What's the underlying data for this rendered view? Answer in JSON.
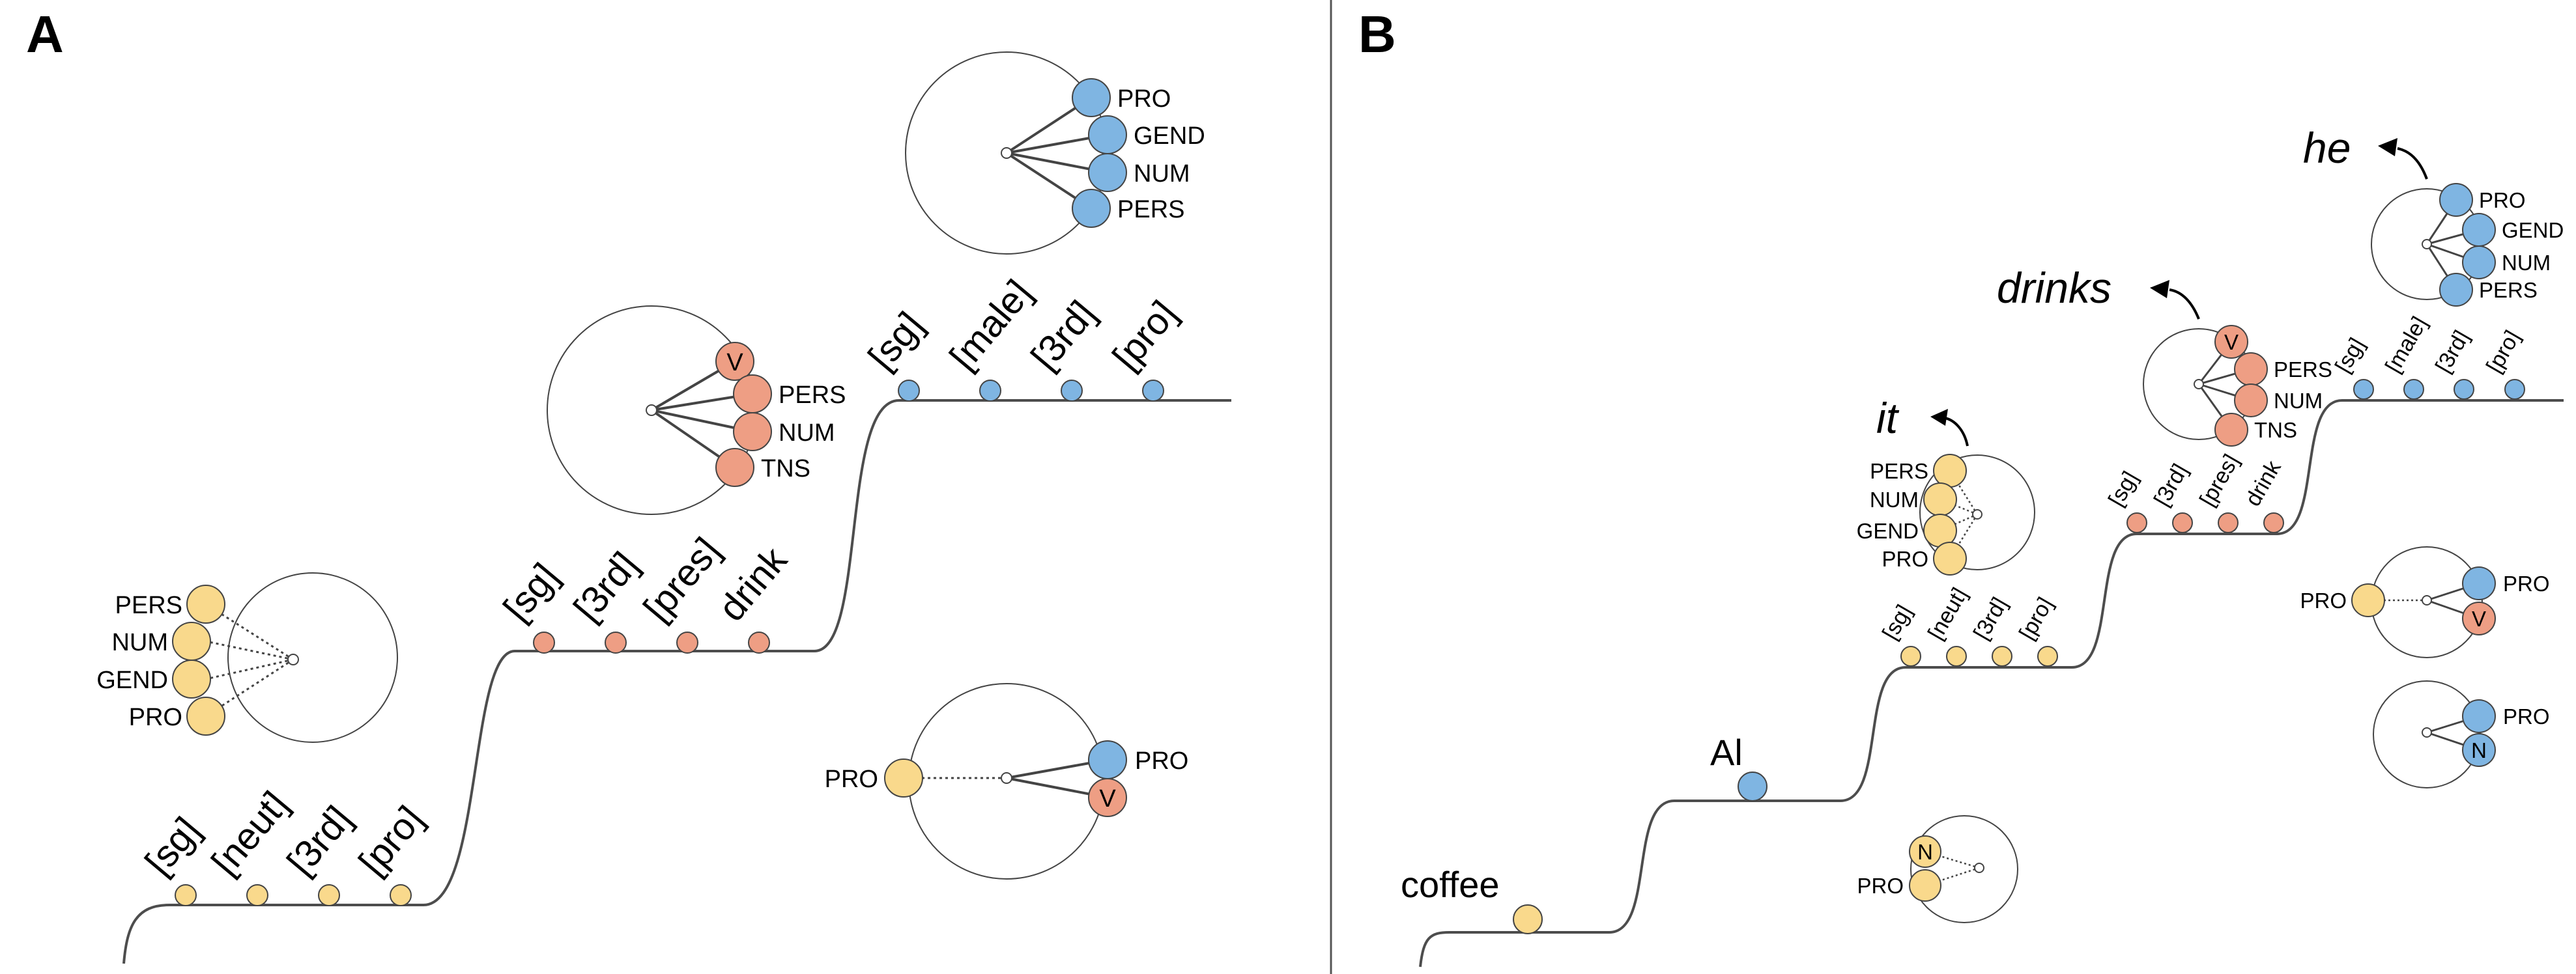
{
  "colors": {
    "yellow": "#F9D98C",
    "salmon": "#EE9E84",
    "blue": "#7FB5E2",
    "stroke": "#444444",
    "line": "#4d4d4d"
  },
  "panel_a": {
    "label": "A",
    "yellow_features": [
      "PERS",
      "NUM",
      "GEND",
      "PRO"
    ],
    "salmon_features": [
      "V",
      "PERS",
      "NUM",
      "TNS"
    ],
    "blue_features": [
      "PRO",
      "GEND",
      "NUM",
      "PERS"
    ],
    "combo_left": "PRO",
    "combo_right": [
      "PRO",
      "V"
    ],
    "step1_labels": [
      "[sg]",
      "[neut]",
      "[3rd]",
      "[pro]"
    ],
    "step2_labels": [
      "[sg]",
      "[3rd]",
      "[pres]",
      "drink"
    ],
    "step3_labels": [
      "[sg]",
      "[male]",
      "[3rd]",
      "[pro]"
    ]
  },
  "panel_b": {
    "label": "B",
    "word_coffee": "coffee",
    "word_al": "Al",
    "word_it": "it",
    "word_drinks": "drinks",
    "word_he": "he",
    "yellow_features": [
      "PERS",
      "NUM",
      "GEND",
      "PRO"
    ],
    "salmon_features": [
      "V",
      "PERS",
      "NUM",
      "TNS"
    ],
    "blue_features": [
      "PRO",
      "GEND",
      "NUM",
      "PERS"
    ],
    "n_circle": [
      "N",
      "PRO"
    ],
    "combo1": {
      "left": "PRO",
      "right": [
        "PRO",
        "V"
      ]
    },
    "combo2": {
      "right": [
        "PRO",
        "N"
      ]
    },
    "step1_labels": [
      "[sg]",
      "[neut]",
      "[3rd]",
      "[pro]"
    ],
    "step2_labels": [
      "[sg]",
      "[3rd]",
      "[pres]",
      "drink"
    ],
    "step3_labels": [
      "[sg]",
      "[male]",
      "[3rd]",
      "[pro]"
    ]
  }
}
